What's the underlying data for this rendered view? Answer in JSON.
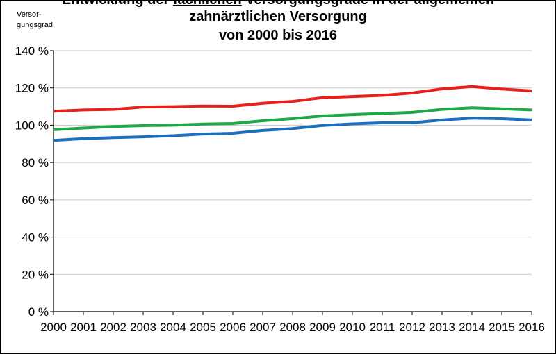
{
  "title": {
    "line1_prefix": "Entwicklung der",
    "line1_emph": "fachlichen",
    "line1_suffix": "Versorgungsgrade in der allgemeinen",
    "line2": "zahnärztlichen Versorgung",
    "line3": "von 2000 bis 2016"
  },
  "ylabel": [
    "Versor-",
    "gungsgrad"
  ],
  "chart_data": {
    "type": "line",
    "x": [
      "2000",
      "2001",
      "2002",
      "2003",
      "2004",
      "2005",
      "2006",
      "2007",
      "2008",
      "2009",
      "2010",
      "2011",
      "2012",
      "2013",
      "2014",
      "2015",
      "2016"
    ],
    "ylim": [
      0,
      140
    ],
    "yticks": [
      "0 %",
      "20 %",
      "40 %",
      "60 %",
      "80 %",
      "100 %",
      "120 %",
      "140 %"
    ],
    "grid": true,
    "series": [
      {
        "color": "#e8201c",
        "values": [
          107.5,
          108.2,
          108.5,
          109.8,
          110.0,
          110.3,
          110.2,
          111.8,
          112.8,
          114.8,
          115.4,
          116.0,
          117.3,
          119.5,
          120.7,
          119.4,
          118.4
        ]
      },
      {
        "color": "#1ea84a",
        "values": [
          97.6,
          98.5,
          99.3,
          99.8,
          100.0,
          100.6,
          100.9,
          102.4,
          103.5,
          105.0,
          105.7,
          106.3,
          106.9,
          108.5,
          109.4,
          108.8,
          108.2
        ]
      },
      {
        "color": "#1b6fbf",
        "values": [
          91.9,
          92.8,
          93.4,
          93.8,
          94.4,
          95.3,
          95.7,
          97.2,
          98.2,
          99.9,
          100.7,
          101.3,
          101.3,
          102.8,
          103.8,
          103.5,
          102.8
        ]
      }
    ]
  }
}
